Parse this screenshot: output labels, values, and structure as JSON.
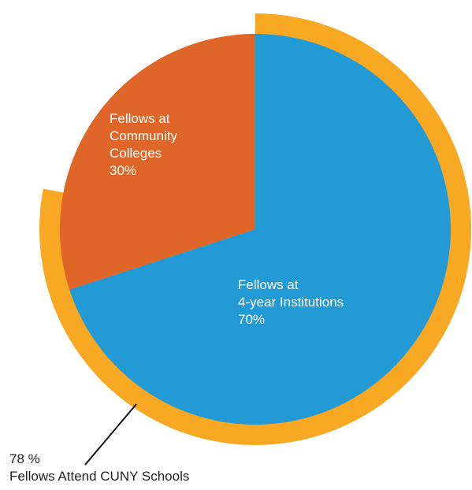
{
  "chart_data": {
    "type": "pie",
    "slices": [
      {
        "label_lines": [
          "Fellows at",
          "4-year Institutions",
          "70%"
        ],
        "value": 70,
        "color": "#219AD6"
      },
      {
        "label_lines": [
          "Fellows at",
          "Community",
          "Colleges",
          "30%"
        ],
        "value": 30,
        "color": "#E06528"
      }
    ],
    "outer_ring": {
      "value": 78,
      "unit": "%",
      "color": "#F8A823"
    },
    "annotation": {
      "value_text": "78 %",
      "label": "Fellows Attend CUNY Schools"
    }
  }
}
